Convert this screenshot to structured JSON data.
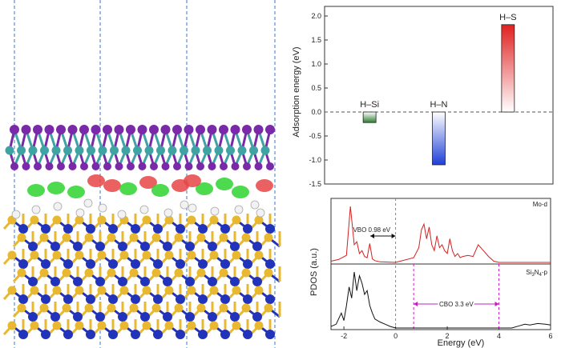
{
  "structure_panel": {
    "layers": [
      "MoS2-like top layer",
      "Si3N4 slab with adsorbed H"
    ],
    "colors": {
      "S": "#7a2aa8",
      "Mo": "#3fa3a3",
      "Si": "#e8b830",
      "N": "#2233bb",
      "H": "#f2f2f2",
      "charge_accumulation": "#2fd42f",
      "charge_depletion": "#e84545",
      "cell_boundary": "#3a78c9"
    }
  },
  "chart_data": [
    {
      "type": "bar",
      "categories": [
        "H–Si",
        "H–N",
        "H–S"
      ],
      "values": [
        -0.22,
        -1.1,
        1.82
      ],
      "xlabel": "",
      "ylabel": "Adsorption energy (eV)",
      "ylim": [
        -1.5,
        2.2
      ],
      "yticks": [
        "-1.5",
        "-1.0",
        "-0.5",
        "0.0",
        "0.5",
        "1.0",
        "1.5",
        "2.0"
      ],
      "ytick_values": [
        -1.5,
        -1.0,
        -0.5,
        0.0,
        0.5,
        1.0,
        1.5,
        2.0
      ],
      "bar_colors": [
        "#2e7d32",
        "#1f3fd6",
        "#e02020"
      ],
      "zero_line": "dashed"
    },
    {
      "type": "line",
      "xlabel": "Energy (eV)",
      "ylabel": "PDOS (a.u.)",
      "xlim": [
        -2.5,
        6
      ],
      "xticks": [
        "-2",
        "0",
        "2",
        "4",
        "6"
      ],
      "xtick_values": [
        -2,
        0,
        2,
        4,
        6
      ],
      "series": [
        {
          "name": "Mo-d",
          "color": "#d42020",
          "x": [
            -2.5,
            -2.2,
            -1.9,
            -1.75,
            -1.6,
            -1.5,
            -1.4,
            -1.3,
            -1.2,
            -1.1,
            -1.0,
            -0.9,
            -0.8,
            -0.6,
            0.0,
            0.7,
            0.9,
            1.0,
            1.1,
            1.2,
            1.3,
            1.4,
            1.5,
            1.6,
            1.7,
            1.8,
            1.9,
            2.0,
            2.1,
            2.2,
            2.3,
            2.4,
            2.5,
            2.6,
            2.8,
            3.0,
            3.2,
            3.4,
            3.6,
            3.8,
            4.0,
            5.0,
            6.0
          ],
          "y": [
            0.02,
            0.05,
            0.12,
            0.95,
            0.3,
            0.35,
            0.15,
            0.2,
            0.1,
            0.08,
            0.32,
            0.06,
            0.03,
            0.01,
            0.0,
            0.08,
            0.25,
            0.55,
            0.65,
            0.4,
            0.6,
            0.3,
            0.2,
            0.45,
            0.25,
            0.3,
            0.2,
            0.15,
            0.4,
            0.2,
            0.1,
            0.15,
            0.08,
            0.1,
            0.12,
            0.1,
            0.3,
            0.2,
            0.1,
            0.02,
            0.0,
            0.0,
            0.0
          ]
        },
        {
          "name": "Si3N4-p",
          "color": "#111111",
          "x": [
            -2.5,
            -2.3,
            -2.1,
            -2.0,
            -1.9,
            -1.8,
            -1.7,
            -1.6,
            -1.5,
            -1.4,
            -1.3,
            -1.2,
            -1.1,
            -1.0,
            -0.9,
            -0.8,
            -0.6,
            -0.4,
            -0.2,
            0.0,
            1.0,
            2.0,
            3.0,
            4.0,
            4.5,
            4.8,
            5.0,
            5.2,
            5.5,
            5.8,
            6.0
          ],
          "y": [
            0.02,
            0.05,
            0.2,
            0.1,
            0.3,
            0.55,
            0.4,
            0.75,
            0.5,
            0.7,
            0.6,
            0.45,
            0.5,
            0.3,
            0.2,
            0.12,
            0.08,
            0.05,
            0.02,
            0.0,
            0.0,
            0.0,
            0.0,
            0.0,
            0.0,
            0.03,
            0.05,
            0.04,
            0.06,
            0.05,
            0.04
          ]
        }
      ],
      "legend_labels": {
        "mo": "Mo-d",
        "si_main": "Si",
        "si_sub3": "3",
        "n_main": "N",
        "n_sub4": "4",
        "p_suffix": "-p"
      },
      "fermi_level": 0,
      "vbo": {
        "label": "VBO 0.98 eV",
        "from": -0.98,
        "to": 0
      },
      "cbo": {
        "label": "CBO 3.3 eV",
        "from": 0.7,
        "to": 4.0
      },
      "cbo_color": "#c020c0"
    }
  ]
}
